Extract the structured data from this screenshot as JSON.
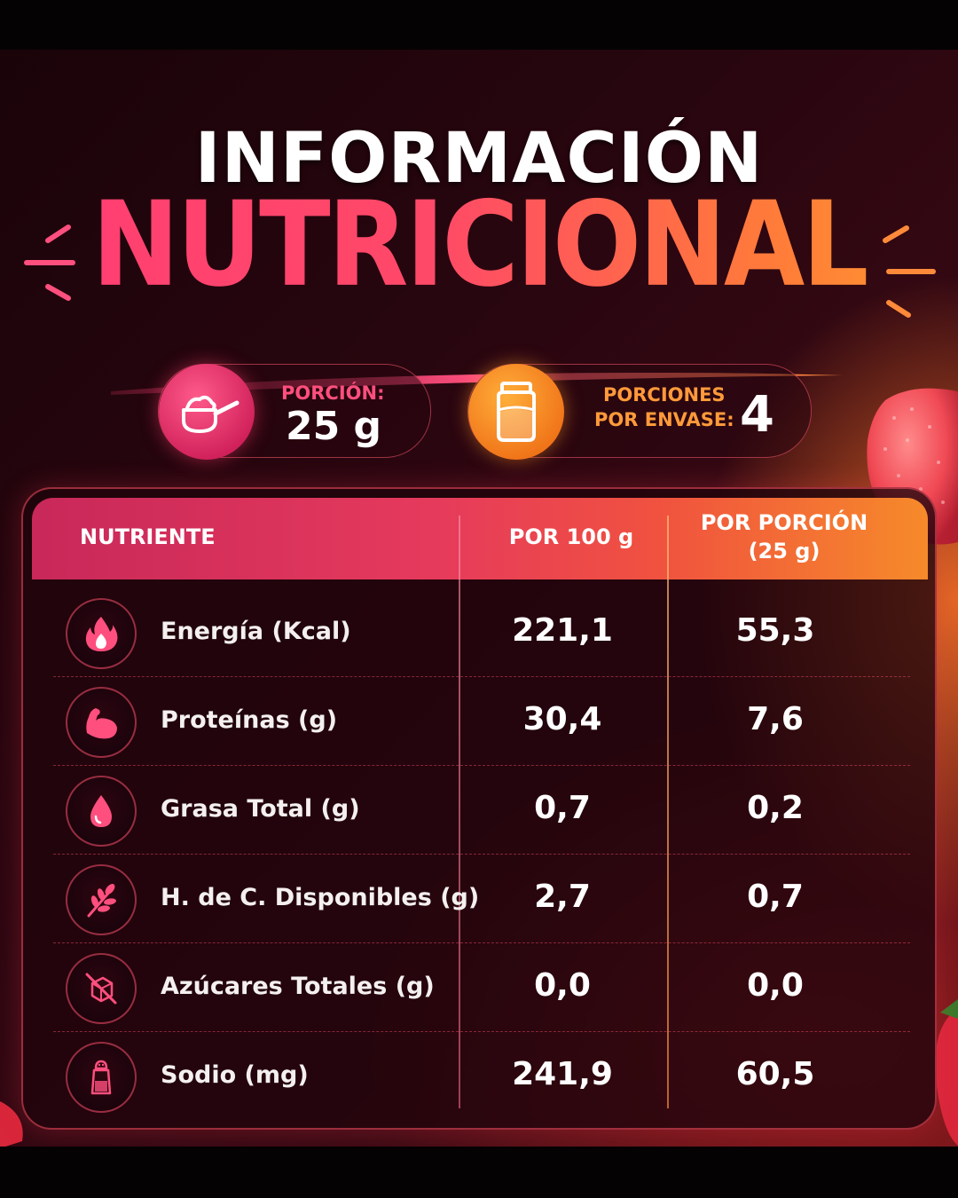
{
  "header": {
    "title_line1": "INFORMACIÓN",
    "title_line2": "NUTRICIONAL"
  },
  "serving": {
    "portion_label": "PORCIÓN:",
    "portion_value": "25 g",
    "per_pack_label_1": "PORCIONES",
    "per_pack_label_2": "POR ENVASE:",
    "per_pack_value": "4"
  },
  "table": {
    "col_nutrient": "NUTRIENTE",
    "col_per100": "POR 100 g",
    "col_perportion_1": "POR PORCIÓN",
    "col_perportion_2": "(25 g)",
    "rows": [
      {
        "name": "Energía (Kcal)",
        "per100": "221,1",
        "perportion": "55,3",
        "icon": "flame-icon"
      },
      {
        "name": "Proteínas (g)",
        "per100": "30,4",
        "perportion": "7,6",
        "icon": "muscle-icon"
      },
      {
        "name": "Grasa Total (g)",
        "per100": "0,7",
        "perportion": "0,2",
        "icon": "drop-icon"
      },
      {
        "name": "H. de C. Disponibles (g)",
        "per100": "2,7",
        "perportion": "0,7",
        "icon": "wheat-icon"
      },
      {
        "name": "Azúcares Totales (g)",
        "per100": "0,0",
        "perportion": "0,0",
        "icon": "no-sugar-icon"
      },
      {
        "name": "Sodio (mg)",
        "per100": "241,9",
        "perportion": "60,5",
        "icon": "salt-shaker-icon"
      }
    ]
  },
  "colors": {
    "pink": "#ff3d73",
    "orange": "#ff9a2e",
    "background": "#2a0610"
  }
}
